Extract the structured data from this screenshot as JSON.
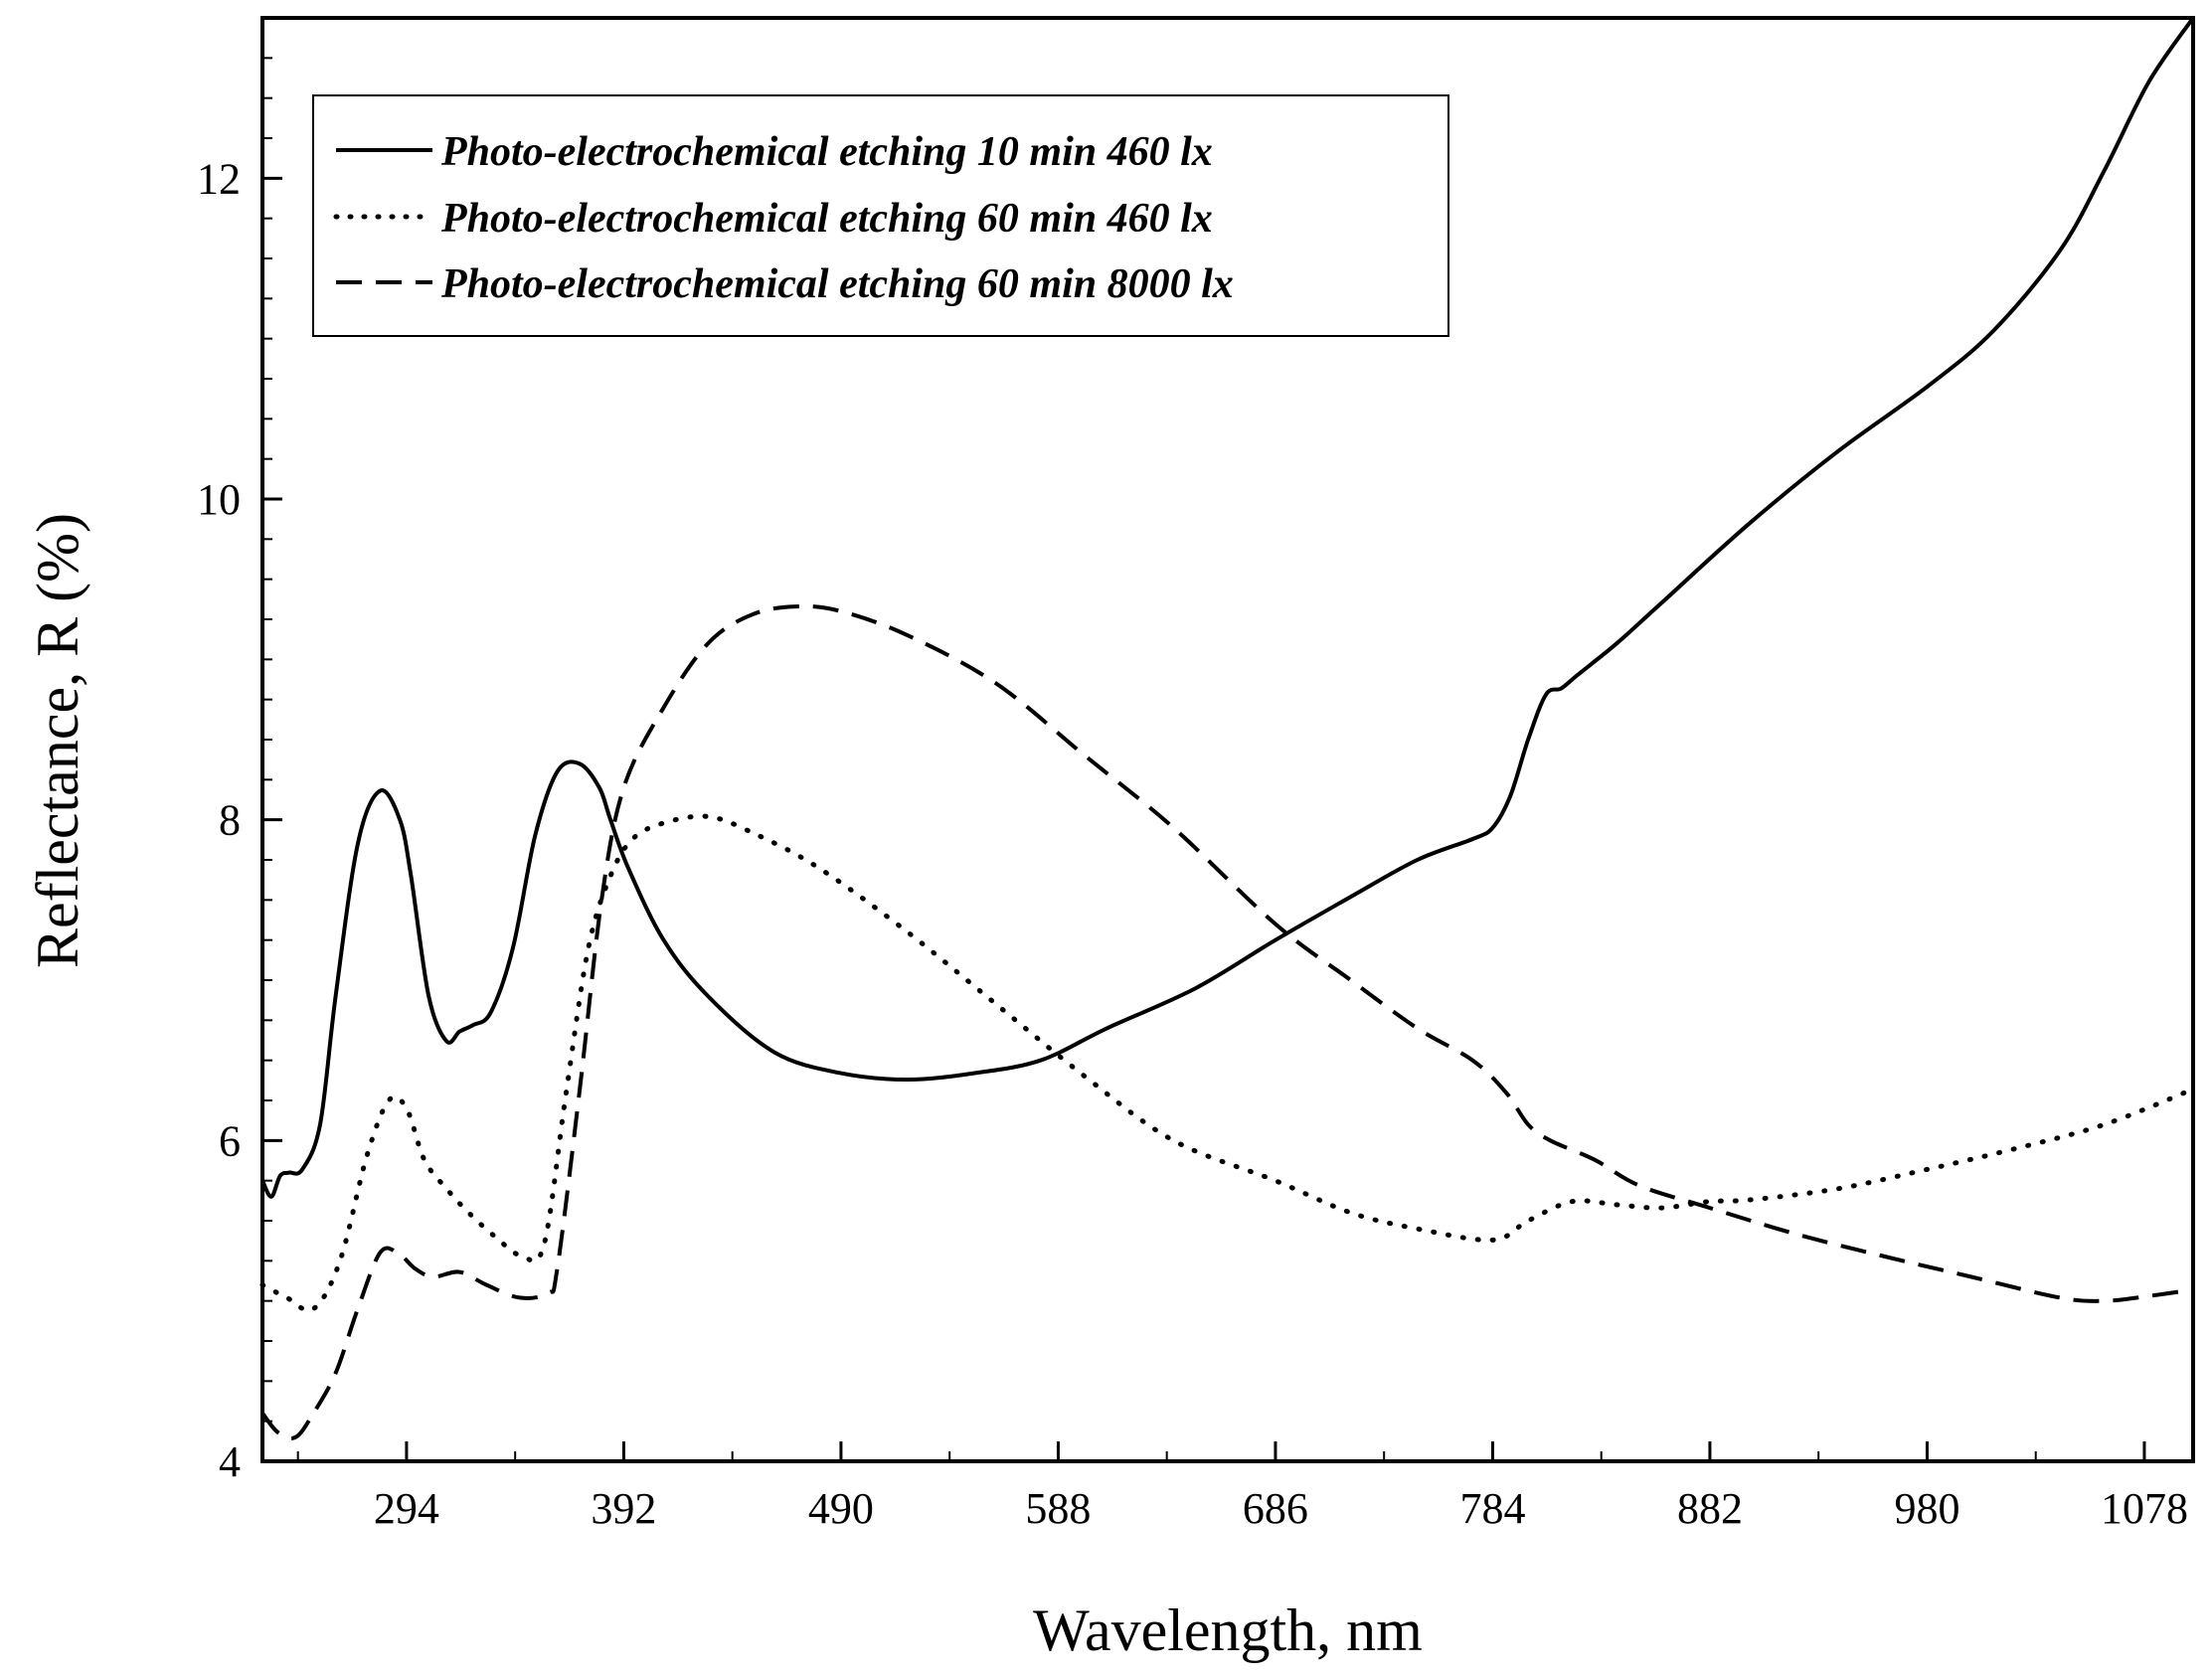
{
  "chart_data": {
    "type": "line",
    "title": "",
    "xlabel": "Wavelength, nm",
    "ylabel": "Reflectance, R (%)",
    "xlim": [
      229,
      1100
    ],
    "ylim": [
      4,
      13
    ],
    "x_ticks": [
      294,
      392,
      490,
      588,
      686,
      784,
      882,
      980,
      1078
    ],
    "y_ticks": [
      4,
      6,
      8,
      10,
      12
    ],
    "legend_position": "top-left",
    "series": [
      {
        "name": "Photo-electrochemical etching 10 min 460 lx",
        "style": "solid",
        "x": [
          229,
          233,
          237,
          241,
          247,
          255,
          262,
          272,
          282,
          291,
          296,
          304,
          312,
          318,
          324,
          332,
          342,
          352,
          362,
          372,
          381,
          386,
          394,
          410,
          430,
          460,
          490,
          520,
          550,
          580,
          610,
          650,
          686,
          720,
          750,
          775,
          784,
          792,
          800,
          808,
          815,
          822,
          840,
          860,
          900,
          940,
          980,
          1010,
          1040,
          1060,
          1080,
          1100
        ],
        "values": [
          5.75,
          5.65,
          5.78,
          5.8,
          5.82,
          6.1,
          6.9,
          7.85,
          8.18,
          8.0,
          7.65,
          6.9,
          6.62,
          6.68,
          6.72,
          6.8,
          7.2,
          7.9,
          8.3,
          8.35,
          8.2,
          8.0,
          7.7,
          7.25,
          6.9,
          6.55,
          6.42,
          6.38,
          6.42,
          6.5,
          6.7,
          6.95,
          7.25,
          7.52,
          7.75,
          7.88,
          7.95,
          8.15,
          8.5,
          8.78,
          8.82,
          8.9,
          9.1,
          9.35,
          9.85,
          10.3,
          10.7,
          11.05,
          11.55,
          12.05,
          12.6,
          13.0
        ]
      },
      {
        "name": "Photo-electrochemical etching 60 min 460 lx",
        "style": "dotted",
        "x": [
          229,
          240,
          252,
          264,
          276,
          286,
          294,
          302,
          312,
          322,
          334,
          346,
          356,
          366,
          376,
          386,
          396,
          410,
          430,
          450,
          480,
          520,
          560,
          600,
          640,
          686,
          720,
          750,
          784,
          800,
          820,
          840,
          860,
          882,
          900,
          940,
          980,
          1020,
          1060,
          1100
        ],
        "values": [
          5.1,
          5.02,
          4.95,
          5.25,
          5.9,
          6.25,
          6.2,
          5.88,
          5.7,
          5.55,
          5.4,
          5.28,
          5.35,
          6.3,
          7.2,
          7.65,
          7.88,
          7.98,
          8.02,
          7.92,
          7.7,
          7.3,
          6.85,
          6.4,
          6.0,
          5.75,
          5.55,
          5.45,
          5.38,
          5.5,
          5.62,
          5.6,
          5.58,
          5.62,
          5.63,
          5.7,
          5.82,
          5.95,
          6.1,
          6.32
        ]
      },
      {
        "name": "Photo-electrochemical etching 60 min 8000 lx",
        "style": "dashed",
        "x": [
          229,
          236,
          244,
          252,
          262,
          272,
          282,
          290,
          298,
          306,
          318,
          330,
          345,
          358,
          362,
          372,
          382,
          392,
          410,
          430,
          450,
          470,
          490,
          520,
          560,
          600,
          640,
          686,
          720,
          750,
          775,
          790,
          800,
          810,
          830,
          850,
          882,
          920,
          960,
          1000,
          1040,
          1060,
          1080,
          1100
        ],
        "values": [
          4.3,
          4.18,
          4.15,
          4.3,
          4.55,
          4.95,
          5.3,
          5.3,
          5.2,
          5.15,
          5.18,
          5.1,
          5.02,
          5.05,
          5.2,
          6.3,
          7.5,
          8.2,
          8.7,
          9.1,
          9.28,
          9.33,
          9.3,
          9.15,
          8.85,
          8.4,
          7.95,
          7.35,
          7.0,
          6.7,
          6.5,
          6.3,
          6.1,
          6.0,
          5.88,
          5.72,
          5.58,
          5.42,
          5.28,
          5.15,
          5.02,
          5.0,
          5.03,
          5.07
        ]
      }
    ]
  }
}
